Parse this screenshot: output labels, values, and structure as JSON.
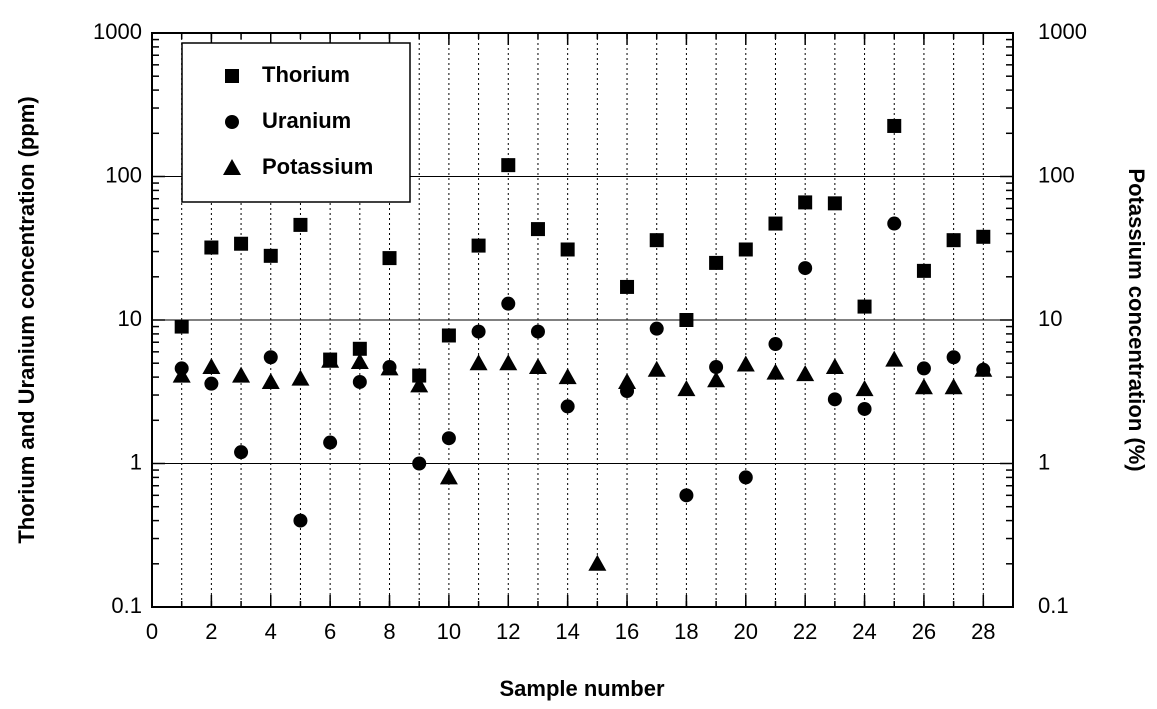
{
  "chart_data": {
    "type": "scatter",
    "xlabel": "Sample number",
    "ylabel": "Thorium and Uranium concentration (ppm)",
    "y2label": "Potassium concentration (%)",
    "x": [
      1,
      2,
      3,
      4,
      5,
      6,
      7,
      8,
      9,
      10,
      11,
      12,
      13,
      14,
      15,
      16,
      17,
      18,
      19,
      20,
      21,
      22,
      23,
      24,
      25,
      26,
      27,
      28
    ],
    "series": [
      {
        "name": "Thorium",
        "color": "#000000",
        "marker": "square",
        "values": [
          9,
          32,
          34,
          28,
          46,
          5.3,
          6.3,
          27,
          4.1,
          7.8,
          33,
          120,
          43,
          31,
          null,
          17,
          36,
          10,
          25,
          31,
          47,
          66,
          65,
          12.4,
          225,
          22,
          36,
          38
        ]
      },
      {
        "name": "Uranium",
        "color": "#000000",
        "marker": "circle",
        "values": [
          4.6,
          3.6,
          1.2,
          5.5,
          0.4,
          1.4,
          3.7,
          4.7,
          1.0,
          1.5,
          8.3,
          13,
          8.3,
          2.5,
          null,
          3.2,
          8.7,
          0.6,
          4.7,
          0.8,
          6.8,
          23,
          2.8,
          2.4,
          47,
          4.6,
          5.5,
          4.5
        ]
      },
      {
        "name": "Potassium",
        "color": "#000000",
        "marker": "triangle",
        "axis": "y2",
        "values": [
          4.1,
          4.7,
          4.1,
          3.7,
          3.9,
          5.2,
          5.1,
          4.6,
          3.5,
          0.8,
          5.0,
          5.0,
          4.7,
          4.0,
          0.2,
          3.7,
          4.5,
          3.3,
          3.8,
          4.9,
          4.3,
          4.2,
          4.7,
          3.3,
          5.3,
          3.4,
          3.4,
          4.5
        ]
      }
    ],
    "xlim": [
      0,
      29
    ],
    "xticks": [
      0,
      2,
      4,
      6,
      8,
      10,
      12,
      14,
      16,
      18,
      20,
      22,
      24,
      26,
      28
    ],
    "ylim": [
      0.1,
      1000
    ],
    "yticks": [
      0.1,
      1,
      10,
      100,
      1000
    ],
    "y2lim": [
      0.1,
      1000
    ],
    "y2ticks": [
      0.1,
      1,
      10,
      100,
      1000
    ],
    "ylog": true,
    "grid": true,
    "legend": "upper left"
  }
}
